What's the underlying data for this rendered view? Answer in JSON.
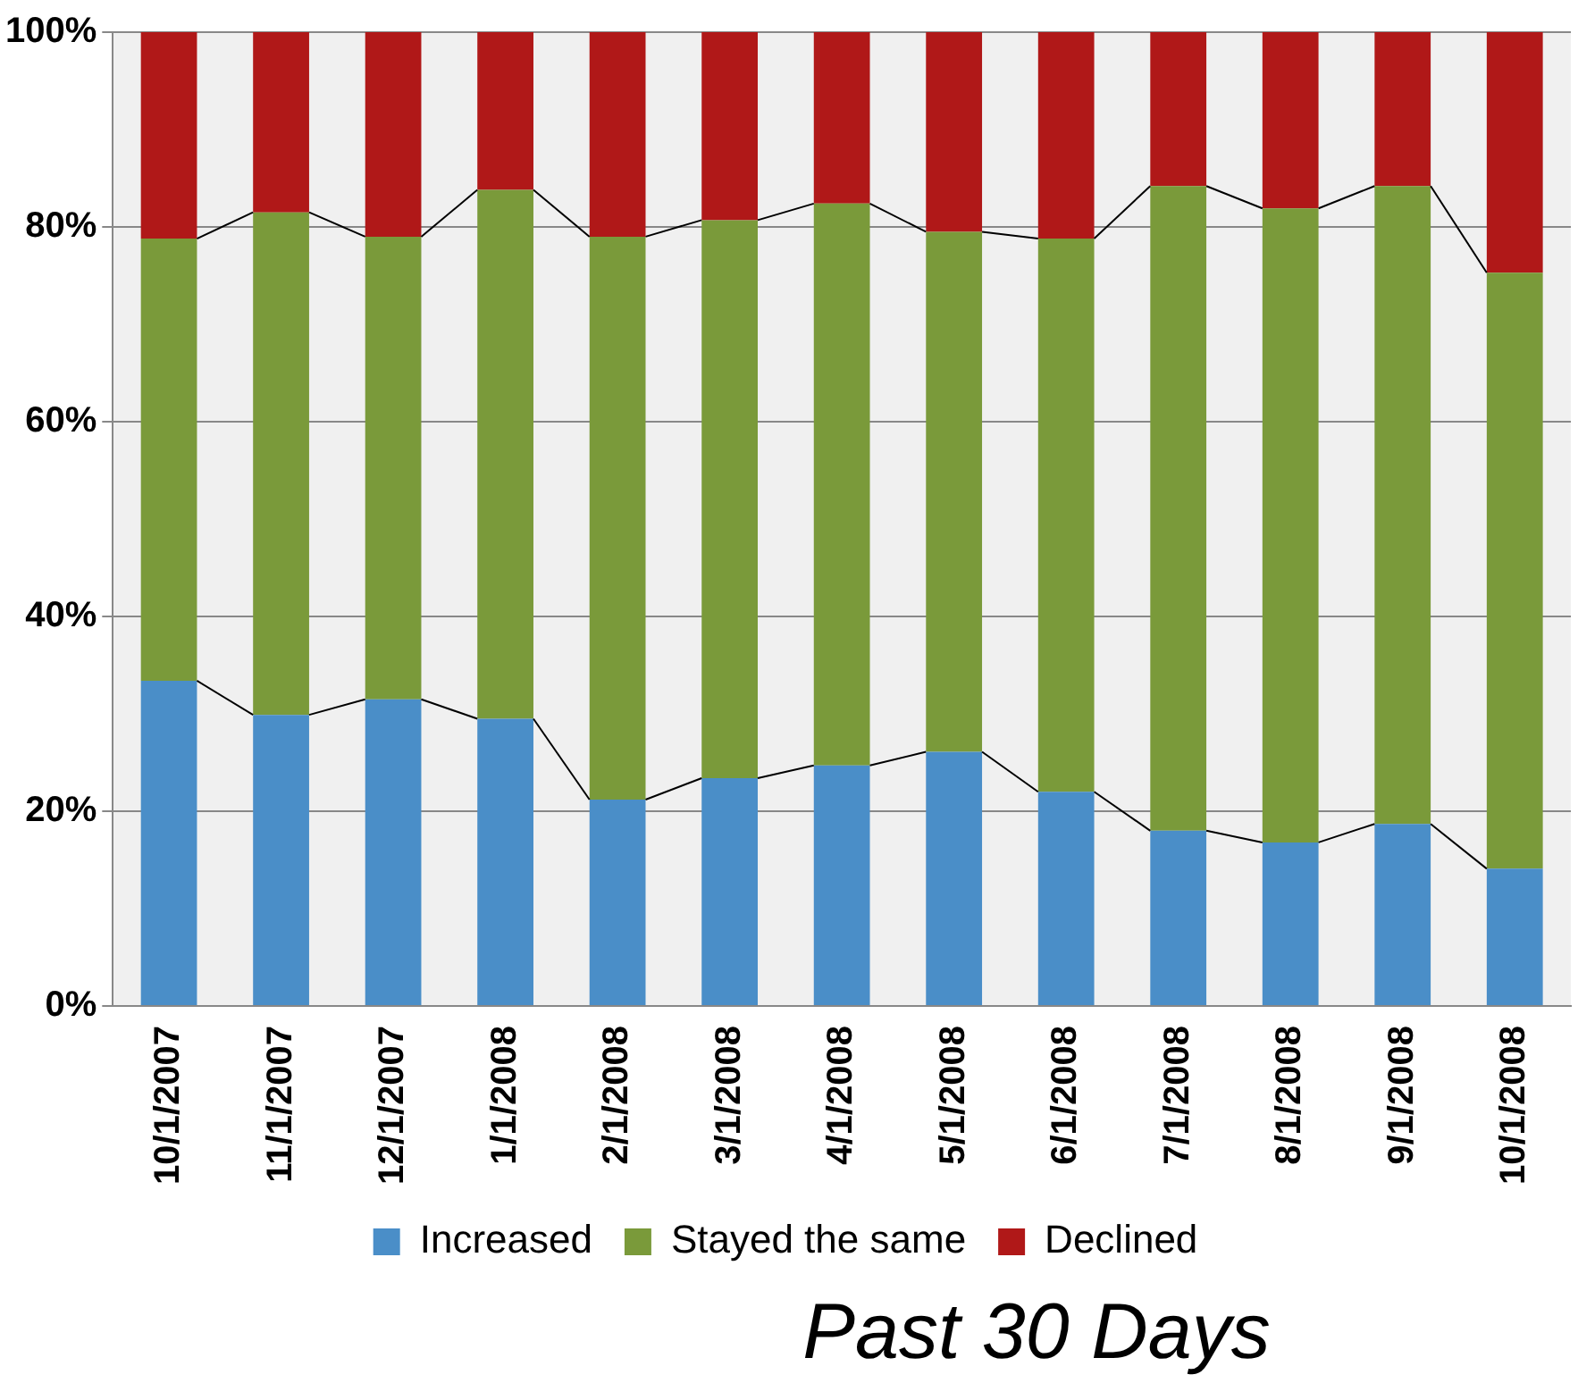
{
  "chart_data": {
    "type": "bar",
    "stacked": true,
    "xlabel": "Past 30 Days",
    "categories": [
      "10/1/2007",
      "11/1/2007",
      "12/1/2007",
      "1/1/2008",
      "2/1/2008",
      "3/1/2008",
      "4/1/2008",
      "5/1/2008",
      "6/1/2008",
      "7/1/2008",
      "8/1/2008",
      "9/1/2008",
      "10/1/2008"
    ],
    "series": [
      {
        "name": "Increased",
        "color": "#4a8ec8",
        "values": [
          33.4,
          29.9,
          31.5,
          29.5,
          21.2,
          23.4,
          24.7,
          26.1,
          22.0,
          18.0,
          16.8,
          18.7,
          14.1
        ]
      },
      {
        "name": "Stayed the same",
        "color": "#7a9a3a",
        "values": [
          45.4,
          51.6,
          47.5,
          54.3,
          57.8,
          57.3,
          57.7,
          53.4,
          56.8,
          66.2,
          65.1,
          65.5,
          61.2
        ]
      },
      {
        "name": "Declined",
        "color": "#b01818",
        "values": [
          21.2,
          18.5,
          21.0,
          16.2,
          21.0,
          19.3,
          17.6,
          20.5,
          21.2,
          15.8,
          18.1,
          15.8,
          24.7
        ]
      }
    ],
    "ylim": [
      0,
      100
    ],
    "yticks": [
      {
        "value": 0,
        "label": "0%"
      },
      {
        "value": 20,
        "label": "20%"
      },
      {
        "value": 40,
        "label": "40%"
      },
      {
        "value": 60,
        "label": "60%"
      },
      {
        "value": 80,
        "label": "80%"
      },
      {
        "value": 100,
        "label": "100%"
      }
    ],
    "grid": "y",
    "legend": "bottom"
  }
}
